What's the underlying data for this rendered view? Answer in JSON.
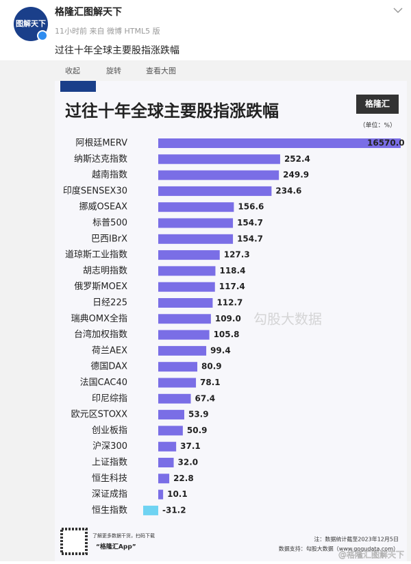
{
  "post": {
    "author": "格隆汇图解天下",
    "avatar_text": "图解天下",
    "meta": "11小时前 来自 微博 HTML5 版",
    "text": "过往十年全球主要股指涨跌幅",
    "actions": [
      "收起",
      "旋转",
      "查看大图"
    ]
  },
  "chart_data": {
    "type": "bar",
    "orientation": "horizontal",
    "title": "过往十年全球主要股指涨跌幅",
    "unit": "（单位：%）",
    "logo": "格隆汇",
    "watermark": "勾股大数据",
    "categories": [
      "阿根廷MERV",
      "纳斯达克指数",
      "越南指数",
      "印度SENSEX30",
      "挪威OSEAX",
      "标普500",
      "巴西IBrX",
      "道琼斯工业指数",
      "胡志明指数",
      "俄罗斯MOEX",
      "日经225",
      "瑞典OMX全指",
      "台湾加权指数",
      "荷兰AEX",
      "德国DAX",
      "法国CAC40",
      "印尼综指",
      "欧元区STOXX",
      "创业板指",
      "沪深300",
      "上证指数",
      "恒生科技",
      "深证成指",
      "恒生指数"
    ],
    "values": [
      16570,
      252.4,
      249.9,
      234.6,
      156.6,
      154.7,
      154.7,
      127.3,
      118.4,
      117.4,
      112.7,
      109,
      105.8,
      99.4,
      80.9,
      78.1,
      67.4,
      53.9,
      50.9,
      37.1,
      32,
      22.8,
      10.1,
      -31.2
    ],
    "value_labels": [
      "16570.0",
      "252.4",
      "249.9",
      "234.6",
      "156.6",
      "154.7",
      "154.7",
      "127.3",
      "118.4",
      "117.4",
      "112.7",
      "109.0",
      "105.8",
      "99.4",
      "80.9",
      "78.1",
      "67.4",
      "53.9",
      "50.9",
      "37.1",
      "32.0",
      "22.8",
      "10.1",
      "-31.2"
    ],
    "color": "#7a6ee6",
    "negative_color": "#6fd3f2",
    "footer": {
      "qr_caption": "了解更多数据干货，扫码下载",
      "app": "“格隆汇App”",
      "note": "注：数据统计截至2023年12月5日",
      "source": "数据支持：勾股大数据（www.gogudata.com）"
    }
  },
  "watermark": "@格隆汇图解天下"
}
